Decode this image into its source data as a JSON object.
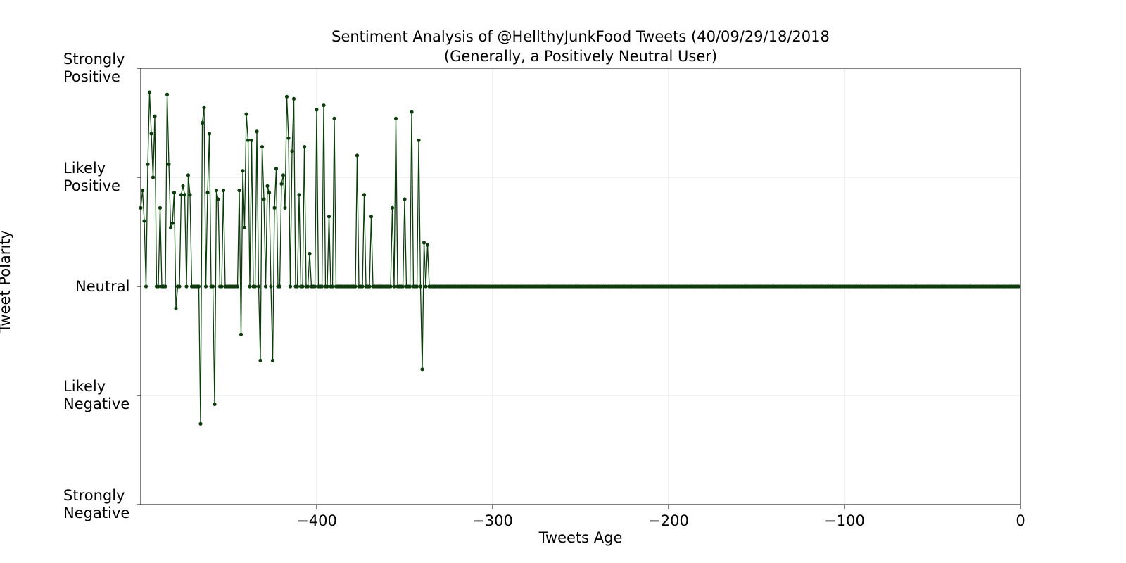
{
  "chart_data": {
    "type": "line",
    "title": "Sentiment Analysis of @HellthyJunkFood Tweets (40/09/29/18/2018",
    "subtitle": "(Generally, a Positively Neutral User)",
    "xlabel": "Tweets Age",
    "ylabel": "Tweet Polarity",
    "xlim": [
      -500,
      0
    ],
    "ylim": [
      -1,
      1
    ],
    "x_ticks": [
      -400,
      -300,
      -200,
      -100,
      0
    ],
    "x_tick_labels": [
      "−400",
      "−300",
      "−200",
      "−100",
      "0"
    ],
    "y_ticks": [
      1,
      0.5,
      0,
      -0.5,
      -1
    ],
    "y_tick_labels": [
      "Strongly\nPositive",
      "Likely\nPositive",
      "Neutral",
      "Likely\nNegative",
      "Strongly\nNegative"
    ],
    "grid": true,
    "line_color": "#0b3d0b",
    "marker_color": "#0b3d0b",
    "x_start": -500,
    "x_step": 1,
    "y": [
      0.36,
      0.44,
      0.3,
      0.0,
      0.56,
      0.89,
      0.7,
      0.5,
      0.78,
      0.0,
      0.0,
      0.36,
      0.0,
      0.0,
      0.0,
      0.88,
      0.56,
      0.27,
      0.29,
      0.43,
      -0.1,
      0.0,
      0.0,
      0.42,
      0.46,
      0.42,
      0.0,
      0.51,
      0.42,
      0.0,
      0.0,
      0.0,
      0.0,
      0.0,
      -0.63,
      0.75,
      0.82,
      0.0,
      0.43,
      0.7,
      0.0,
      0.0,
      -0.54,
      0.44,
      0.4,
      0.0,
      0.0,
      0.44,
      0.0,
      0.0,
      0.0,
      0.0,
      0.0,
      0.0,
      0.0,
      0.0,
      0.44,
      -0.22,
      0.53,
      0.27,
      0.79,
      0.67,
      0.0,
      0.67,
      0.0,
      0.0,
      0.71,
      0.0,
      -0.34,
      0.64,
      0.4,
      0.0,
      0.46,
      0.43,
      0.0,
      -0.34,
      0.36,
      0.54,
      0.0,
      0.0,
      0.47,
      0.51,
      0.36,
      0.87,
      0.68,
      0.0,
      0.62,
      0.86,
      0.0,
      0.0,
      0.42,
      0.0,
      0.0,
      0.64,
      0.0,
      0.0,
      0.15,
      0.0,
      0.0,
      0.0,
      0.81,
      0.0,
      0.0,
      0.0,
      0.83,
      0.0,
      0.0,
      0.32,
      0.0,
      0.0,
      0.77,
      0.0,
      0.0,
      0.0,
      0.0,
      0.0,
      0.0,
      0.0,
      0.0,
      0.0,
      0.0,
      0.0,
      0.0,
      0.6,
      0.0,
      0.0,
      0.0,
      0.42,
      0.0,
      0.0,
      0.0,
      0.32,
      0.0,
      0.0,
      0.0,
      0.0,
      0.0,
      0.0,
      0.0,
      0.0,
      0.0,
      0.0,
      0.0,
      0.36,
      0.0,
      0.77,
      0.0,
      0.0,
      0.0,
      0.0,
      0.4,
      0.0,
      0.0,
      0.0,
      0.8,
      0.0,
      0.0,
      0.0,
      0.67,
      0.0,
      -0.38,
      0.2,
      0.0,
      0.19,
      0.0,
      0.0,
      0.0,
      0.0,
      0.0,
      0.0,
      0.0,
      0.0,
      0.0,
      0.0,
      0.0,
      0.0,
      0.0,
      0.0,
      0.0,
      0.0,
      0.0,
      0.0,
      0.0,
      0.0,
      0.0,
      0.0,
      0.0,
      0.0,
      0.0,
      0.0,
      0.0,
      0.0,
      0.0,
      0.0,
      0.0,
      0.0,
      0.0,
      0.0,
      0.0,
      0.0,
      0.0,
      0.0,
      0.0,
      0.0,
      0.0,
      0.0,
      0.0,
      0.0,
      0.0,
      0.0,
      0.0,
      0.0,
      0.0,
      0.0,
      0.0,
      0.0,
      0.0,
      0.0,
      0.0,
      0.0,
      0.0,
      0.0,
      0.0,
      0.0,
      0.0,
      0.0,
      0.0,
      0.0,
      0.0,
      0.0,
      0.0,
      0.0,
      0.0,
      0.0,
      0.0,
      0.0,
      0.0,
      0.0,
      0.0,
      0.0,
      0.0,
      0.0,
      0.0,
      0.0,
      0.0,
      0.0,
      0.0,
      0.0,
      0.0,
      0.0,
      0.0,
      0.0,
      0.0,
      0.0,
      0.0,
      0.0,
      0.0,
      0.0,
      0.0,
      0.0,
      0.0,
      0.0,
      0.0,
      0.0,
      0.0,
      0.0,
      0.0,
      0.0,
      0.0,
      0.0,
      0.0,
      0.0,
      0.0,
      0.0,
      0.0,
      0.0,
      0.0,
      0.0,
      0.0,
      0.0,
      0.0,
      0.0,
      0.0,
      0.0,
      0.0,
      0.0,
      0.0,
      0.0,
      0.0,
      0.0,
      0.0,
      0.0,
      0.0,
      0.0,
      0.0,
      0.0,
      0.0,
      0.0,
      0.0,
      0.0,
      0.0,
      0.0,
      0.0,
      0.0,
      0.0,
      0.0,
      0.0,
      0.0,
      0.0,
      0.0,
      0.0,
      0.0,
      0.0,
      0.0,
      0.0,
      0.0,
      0.0,
      0.0,
      0.0,
      0.0,
      0.0,
      0.0,
      0.0,
      0.0,
      0.0,
      0.0,
      0.0,
      0.0,
      0.0,
      0.0,
      0.0,
      0.0,
      0.0,
      0.0,
      0.0,
      0.0,
      0.0,
      0.0,
      0.0,
      0.0,
      0.0,
      0.0,
      0.0,
      0.0,
      0.0,
      0.0,
      0.0,
      0.0,
      0.0,
      0.0,
      0.0,
      0.0,
      0.0,
      0.0,
      0.0,
      0.0,
      0.0,
      0.0,
      0.0,
      0.0,
      0.0,
      0.0,
      0.0,
      0.0,
      0.0,
      0.0,
      0.0,
      0.0,
      0.0,
      0.0,
      0.0,
      0.0,
      0.0,
      0.0,
      0.0,
      0.0,
      0.0,
      0.0,
      0.0,
      0.0,
      0.0,
      0.0,
      0.0,
      0.0,
      0.0,
      0.0,
      0.0,
      0.0,
      0.0,
      0.0,
      0.0,
      0.0,
      0.0,
      0.0,
      0.0,
      0.0,
      0.0,
      0.0,
      0.0,
      0.0,
      0.0,
      0.0,
      0.0,
      0.0,
      0.0,
      0.0,
      0.0,
      0.0,
      0.0,
      0.0,
      0.0,
      0.0,
      0.0,
      0.0,
      0.0,
      0.0,
      0.0,
      0.0,
      0.0,
      0.0,
      0.0,
      0.0,
      0.0,
      0.0,
      0.0,
      0.0,
      0.0,
      0.0,
      0.0,
      0.0,
      0.0,
      0.0,
      0.0,
      0.0,
      0.0,
      0.0,
      0.0,
      0.0,
      0.0,
      0.0,
      0.0,
      0.0,
      0.0,
      0.0,
      0.0,
      0.0,
      0.0,
      0.0,
      0.0,
      0.0,
      0.0,
      0.0,
      0.0,
      0.0,
      0.0,
      0.0,
      0.0,
      0.0,
      0.0,
      0.0,
      0.0,
      0.0,
      0.0,
      0.0,
      0.0,
      0.0,
      0.0,
      0.0,
      0.0,
      0.0,
      0.0,
      0.0,
      0.0,
      0.0,
      0.0,
      0.0,
      0.0,
      0.0,
      0.0,
      0.0,
      0.0,
      0.0,
      0.0,
      0.0,
      0.0,
      0.0,
      0.0,
      0.0,
      0.0,
      0.0,
      0.0,
      0.0,
      0.0,
      0.0,
      0.0,
      0.0,
      0.0,
      0.0,
      0.0,
      0.0
    ]
  }
}
